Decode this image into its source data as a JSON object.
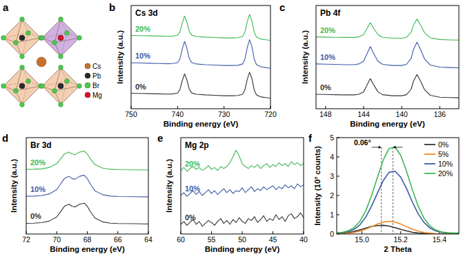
{
  "diagram": {
    "panel": "a",
    "legend": [
      {
        "label": "Cs",
        "color": "#c8702a"
      },
      {
        "label": "Pb",
        "color": "#2a2a2a"
      },
      {
        "label": "Br",
        "color": "#4cc94c"
      },
      {
        "label": "Mg",
        "color": "#e0102a"
      }
    ]
  },
  "chart_data": [
    {
      "panel": "b",
      "type": "line",
      "title": "Cs 3d",
      "x_label": "Binding energy (eV)",
      "y_label": "Intensity (a.u.)",
      "tick_labels": "x",
      "x": [
        750,
        748,
        746,
        744,
        742,
        741,
        740,
        739.5,
        739,
        738.5,
        738,
        737.5,
        737,
        736,
        734,
        732,
        730,
        728,
        727,
        726,
        725.5,
        725,
        724.5,
        724,
        723.5,
        723,
        722,
        721,
        720
      ],
      "xlim": [
        750,
        720
      ],
      "xticks": [
        750,
        740,
        730,
        720
      ],
      "ylim": [
        0,
        10
      ],
      "series": [
        {
          "name": "0%",
          "color": "#333333",
          "values": [
            1.5,
            1.48,
            1.46,
            1.44,
            1.42,
            1.44,
            1.52,
            1.84,
            2.7,
            3.38,
            2.8,
            1.92,
            1.54,
            1.4,
            1.34,
            1.3,
            1.26,
            1.26,
            1.28,
            1.4,
            1.84,
            2.84,
            3.54,
            2.92,
            1.82,
            1.34,
            1.14,
            1.08,
            1.02
          ]
        },
        {
          "name": "10%",
          "color": "#3b5ba5",
          "values": [
            4.45,
            4.43,
            4.41,
            4.38,
            4.36,
            4.38,
            4.47,
            4.82,
            5.77,
            6.52,
            5.88,
            4.91,
            4.49,
            4.34,
            4.27,
            4.23,
            4.19,
            4.19,
            4.21,
            4.34,
            4.82,
            5.92,
            6.69,
            6.01,
            4.8,
            4.27,
            4.05,
            3.99,
            3.92
          ]
        },
        {
          "name": "20%",
          "color": "#3cb850",
          "values": [
            7.1,
            7.08,
            7.06,
            7.04,
            7.02,
            7.04,
            7.12,
            7.44,
            8.3,
            8.98,
            8.4,
            7.52,
            7.14,
            7.0,
            6.94,
            6.9,
            6.86,
            6.86,
            6.88,
            7.0,
            7.44,
            8.44,
            9.14,
            8.52,
            7.42,
            6.94,
            6.74,
            6.68,
            6.62
          ]
        }
      ]
    },
    {
      "panel": "c",
      "type": "line",
      "title": "Pb 4f",
      "x_label": "Binding energy (eV)",
      "y_label": "Intensity (a.u.)",
      "tick_labels": "x",
      "x": [
        149,
        148,
        147,
        146,
        145,
        144.5,
        144,
        143.7,
        143.3,
        142.9,
        142.5,
        142,
        141,
        140,
        139.5,
        139,
        138.8,
        138.4,
        138,
        137.6,
        137,
        136,
        135,
        134
      ],
      "xlim": [
        149,
        134
      ],
      "xticks": [
        148,
        144,
        140,
        136
      ],
      "ylim": [
        0,
        10
      ],
      "series": [
        {
          "name": "0%",
          "color": "#333333",
          "values": [
            1.4,
            1.38,
            1.36,
            1.34,
            1.34,
            1.4,
            1.64,
            2.2,
            2.92,
            2.24,
            1.64,
            1.36,
            1.26,
            1.26,
            1.36,
            1.9,
            2.6,
            3.32,
            2.64,
            1.84,
            1.3,
            1.12,
            1.08,
            1.06
          ]
        },
        {
          "name": "10%",
          "color": "#3b5ba5",
          "values": [
            4.34,
            4.32,
            4.3,
            4.27,
            4.27,
            4.34,
            4.6,
            5.22,
            6.01,
            5.26,
            4.6,
            4.3,
            4.19,
            4.19,
            4.3,
            4.89,
            5.66,
            6.45,
            5.7,
            4.82,
            4.23,
            4.03,
            3.99,
            3.97
          ]
        },
        {
          "name": "20%",
          "color": "#3cb850",
          "values": [
            6.96,
            6.94,
            6.92,
            6.91,
            6.91,
            6.96,
            7.18,
            7.68,
            8.33,
            7.72,
            7.18,
            6.92,
            6.83,
            6.83,
            6.92,
            7.41,
            8.04,
            8.69,
            8.08,
            7.36,
            6.87,
            6.71,
            6.67,
            6.65
          ]
        }
      ]
    },
    {
      "panel": "d",
      "type": "line",
      "title": "Br 3d",
      "x_label": "Binding energy (eV)",
      "y_label": "Intensity (a.u.)",
      "tick_labels": "x",
      "x": [
        72,
        71.5,
        71,
        70.5,
        70,
        69.8,
        69.5,
        69.2,
        69,
        68.8,
        68.5,
        68.2,
        68,
        67.8,
        67.5,
        67,
        66.5,
        66,
        65,
        64
      ],
      "xlim": [
        72,
        64
      ],
      "xticks": [
        72,
        70,
        68,
        66,
        64
      ],
      "ylim": [
        0,
        10
      ],
      "series": [
        {
          "name": "0%",
          "color": "#333333",
          "values": [
            1.11,
            1.13,
            1.18,
            1.33,
            1.77,
            2.21,
            2.87,
            3.09,
            2.87,
            2.8,
            3.09,
            3.2,
            2.87,
            2.32,
            1.66,
            1.26,
            1.13,
            1.09,
            1.07,
            1.04
          ]
        },
        {
          "name": "10%",
          "color": "#3b5ba5",
          "values": [
            3.92,
            3.94,
            3.98,
            4.15,
            4.61,
            5.07,
            5.76,
            5.99,
            5.76,
            5.69,
            5.99,
            6.1,
            5.76,
            5.18,
            4.49,
            4.08,
            3.94,
            3.89,
            3.87,
            3.85
          ]
        },
        {
          "name": "20%",
          "color": "#3cb850",
          "values": [
            6.7,
            6.72,
            6.76,
            6.9,
            7.3,
            7.7,
            8.3,
            8.5,
            8.3,
            8.24,
            8.5,
            8.6,
            8.3,
            7.8,
            7.2,
            6.84,
            6.72,
            6.68,
            6.66,
            6.64
          ]
        }
      ]
    },
    {
      "panel": "e",
      "type": "line",
      "title": "Mg 2p",
      "x_label": "Binding energy (eV)",
      "y_label": "Intensity (a.u.)",
      "tick_labels": "x",
      "x": [
        60,
        59.5,
        59,
        58.5,
        58,
        57.5,
        57,
        56.5,
        56,
        55.5,
        55,
        54.5,
        54,
        53.5,
        53,
        52.5,
        52,
        51.5,
        51,
        50.5,
        50,
        49.5,
        49,
        48.5,
        48,
        47.5,
        47,
        46.5,
        46,
        45.5,
        45,
        44.5,
        44,
        43.5,
        43,
        42.5,
        42,
        41.5,
        41,
        40.5,
        40
      ],
      "xlim": [
        60,
        40
      ],
      "xticks": [
        60,
        55,
        50,
        45,
        40
      ],
      "ylim": [
        0,
        10
      ],
      "series": [
        {
          "name": "0%",
          "color": "#333333",
          "values": [
            1.0,
            1.3,
            0.9,
            1.2,
            1.5,
            1.0,
            1.3,
            0.8,
            1.1,
            1.4,
            1.2,
            0.9,
            1.3,
            1.6,
            1.1,
            1.4,
            1.0,
            1.5,
            1.2,
            1.7,
            1.3,
            1.1,
            1.6,
            1.4,
            1.8,
            1.2,
            1.5,
            1.9,
            1.3,
            1.6,
            1.4,
            2.0,
            1.5,
            1.8,
            1.3,
            1.9,
            2.1,
            1.6,
            1.8,
            2.2,
            1.7
          ]
        },
        {
          "name": "10%",
          "color": "#3b5ba5",
          "values": [
            4.0,
            4.3,
            3.9,
            4.2,
            4.5,
            4.1,
            4.4,
            4.0,
            4.3,
            4.6,
            4.2,
            4.5,
            4.1,
            4.4,
            4.7,
            4.3,
            4.6,
            4.2,
            4.5,
            4.4,
            4.8,
            4.3,
            4.6,
            4.9,
            4.4,
            4.7,
            4.5,
            4.9,
            4.6,
            4.8,
            5.0,
            4.6,
            4.9,
            4.7,
            5.1,
            4.8,
            5.0,
            4.7,
            5.2,
            4.9,
            5.1
          ]
        },
        {
          "name": "20%",
          "color": "#3cb850",
          "values": [
            6.6,
            6.9,
            6.5,
            6.8,
            7.0,
            6.7,
            6.9,
            6.6,
            6.8,
            7.1,
            6.7,
            6.9,
            6.6,
            7.0,
            6.8,
            7.0,
            7.4,
            8.0,
            8.7,
            8.1,
            7.3,
            7.0,
            6.8,
            7.1,
            6.9,
            7.2,
            6.8,
            7.1,
            7.3,
            6.9,
            7.2,
            7.0,
            7.4,
            7.1,
            7.3,
            7.0,
            7.5,
            7.2,
            7.4,
            7.1,
            7.3
          ]
        }
      ]
    },
    {
      "panel": "f",
      "type": "line",
      "x_label": "2 Theta",
      "y_label": "Intensity (10³ counts)",
      "legend": "upper right",
      "x": [
        14.87,
        14.9,
        14.93,
        14.96,
        14.99,
        15.02,
        15.05,
        15.08,
        15.11,
        15.14,
        15.17,
        15.2,
        15.23,
        15.26,
        15.29,
        15.32,
        15.35,
        15.38,
        15.41,
        15.44,
        15.47,
        15.5
      ],
      "xlim": [
        14.87,
        15.5
      ],
      "xticks": [
        {
          "value": 15,
          "label": "15.0"
        },
        15.2,
        15.4
      ],
      "ylim": [
        0,
        5
      ],
      "yticks": [
        0,
        1,
        2,
        3,
        4,
        5
      ],
      "reference_lines": [
        15.1,
        15.16
      ],
      "annotation": "0.06°",
      "series": [
        {
          "name": "0%",
          "color": "#333333",
          "values": [
            0.02,
            0.04,
            0.08,
            0.13,
            0.21,
            0.3,
            0.39,
            0.44,
            0.45,
            0.41,
            0.33,
            0.24,
            0.16,
            0.09,
            0.05,
            0.03,
            0.02,
            0.01,
            0.01,
            0.01,
            0.01,
            0.01
          ]
        },
        {
          "name": "5%",
          "color": "#f08a24",
          "values": [
            0.01,
            0.02,
            0.04,
            0.08,
            0.15,
            0.25,
            0.38,
            0.52,
            0.62,
            0.66,
            0.62,
            0.52,
            0.38,
            0.25,
            0.15,
            0.08,
            0.04,
            0.02,
            0.01,
            0.01,
            0.01,
            0.01
          ]
        },
        {
          "name": "10%",
          "color": "#3b5ba5",
          "values": [
            0.05,
            0.07,
            0.13,
            0.24,
            0.48,
            0.88,
            1.45,
            2.12,
            2.77,
            3.2,
            3.26,
            2.95,
            2.36,
            1.66,
            1.05,
            0.6,
            0.31,
            0.16,
            0.08,
            0.05,
            0.04,
            0.04
          ]
        },
        {
          "name": "20%",
          "color": "#3cb850",
          "values": [
            0.06,
            0.09,
            0.17,
            0.33,
            0.66,
            1.21,
            2.0,
            2.94,
            3.84,
            4.43,
            4.52,
            4.08,
            3.26,
            2.3,
            1.45,
            0.82,
            0.42,
            0.21,
            0.11,
            0.07,
            0.05,
            0.05
          ]
        }
      ]
    }
  ]
}
